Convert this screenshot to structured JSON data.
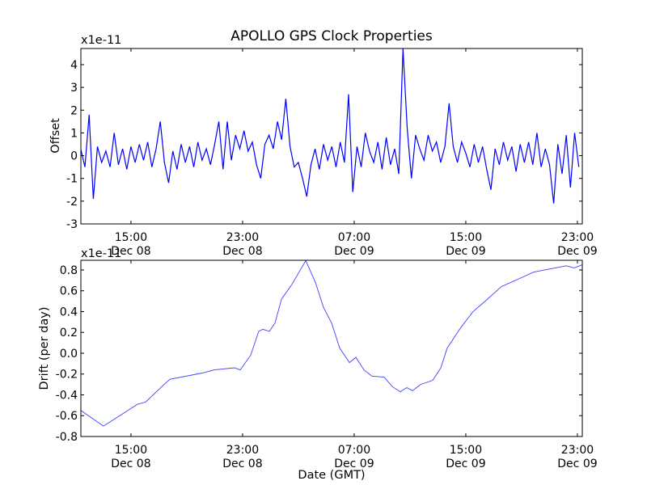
{
  "chart_data": [
    {
      "type": "line",
      "title": "APOLLO GPS Clock Properties",
      "ylabel": "Offset",
      "xlabel": "",
      "y_multiplier_label": "x1e-11",
      "x_unit": "hours since Dec 08 00:00 GMT",
      "xlim": [
        11.41,
        47.35
      ],
      "ylim": [
        -3,
        4.71
      ],
      "yticks": [
        -3,
        -2,
        -1,
        0,
        1,
        2,
        3,
        4
      ],
      "xticks": [
        {
          "x": 15,
          "time": "15:00",
          "date": "Dec 08"
        },
        {
          "x": 23,
          "time": "23:00",
          "date": "Dec 08"
        },
        {
          "x": 31,
          "time": "07:00",
          "date": "Dec 09"
        },
        {
          "x": 39,
          "time": "15:00",
          "date": "Dec 09"
        },
        {
          "x": 47,
          "time": "23:00",
          "date": "Dec 09"
        }
      ],
      "color": "#0000ff",
      "series": {
        "start_hour": 11.4,
        "step_hours": 0.3,
        "values": [
          0.3,
          -0.5,
          1.8,
          -1.9,
          0.4,
          -0.3,
          0.2,
          -0.5,
          1.0,
          -0.4,
          0.3,
          -0.6,
          0.4,
          -0.3,
          0.5,
          -0.2,
          0.6,
          -0.5,
          0.3,
          1.5,
          -0.3,
          -1.2,
          0.2,
          -0.6,
          0.5,
          -0.3,
          0.4,
          -0.5,
          0.6,
          -0.2,
          0.3,
          -0.4,
          0.5,
          1.5,
          -0.6,
          1.5,
          -0.2,
          0.9,
          0.3,
          1.1,
          0.2,
          0.6,
          -0.4,
          -1.0,
          0.5,
          0.9,
          0.3,
          1.5,
          0.7,
          2.5,
          0.4,
          -0.5,
          -0.3,
          -1.0,
          -1.8,
          -0.4,
          0.3,
          -0.6,
          0.5,
          -0.2,
          0.4,
          -0.5,
          0.6,
          -0.3,
          2.7,
          -1.6,
          0.4,
          -0.5,
          1.0,
          0.2,
          -0.3,
          0.6,
          -0.6,
          0.8,
          -0.4,
          0.3,
          -0.8,
          4.7,
          1.2,
          -1.0,
          0.9,
          0.3,
          -0.2,
          0.9,
          0.2,
          0.6,
          -0.3,
          0.4,
          2.3,
          0.4,
          -0.3,
          0.6,
          0.1,
          -0.5,
          0.5,
          -0.3,
          0.4,
          -0.6,
          -1.5,
          0.3,
          -0.4,
          0.6,
          -0.2,
          0.4,
          -0.7,
          0.5,
          -0.3,
          0.6,
          -0.4,
          1.0,
          -0.5,
          0.3,
          -0.4,
          -2.1,
          0.5,
          -0.8,
          0.9,
          -1.4,
          1.0,
          -0.5
        ]
      }
    },
    {
      "type": "line",
      "title": "",
      "ylabel": "Drift (per day)",
      "xlabel": "Date (GMT)",
      "y_multiplier_label": "x1e-11",
      "x_unit": "hours since Dec 08 00:00 GMT",
      "xlim": [
        11.41,
        47.35
      ],
      "ylim": [
        -0.8,
        0.893
      ],
      "yticks": [
        -0.8,
        -0.6,
        -0.4,
        -0.2,
        0.0,
        0.2,
        0.4,
        0.6,
        0.8
      ],
      "xticks": [
        {
          "x": 15,
          "time": "15:00",
          "date": "Dec 08"
        },
        {
          "x": 23,
          "time": "23:00",
          "date": "Dec 08"
        },
        {
          "x": 31,
          "time": "07:00",
          "date": "Dec 09"
        },
        {
          "x": 39,
          "time": "15:00",
          "date": "Dec 09"
        },
        {
          "x": 47,
          "time": "23:00",
          "date": "Dec 09"
        }
      ],
      "color": "#4040ff",
      "series": {
        "x": [
          11.41,
          13.03,
          14.31,
          15.47,
          16.05,
          17.21,
          17.79,
          20.11,
          20.98,
          22.42,
          22.83,
          23.58,
          24.16,
          24.45,
          24.92,
          25.32,
          25.79,
          26.48,
          27.53,
          28.22,
          28.8,
          29.38,
          29.96,
          30.66,
          31.12,
          31.7,
          32.28,
          33.15,
          33.73,
          34.31,
          34.77,
          35.18,
          35.76,
          36.63,
          37.21,
          37.67,
          38.66,
          39.52,
          40.39,
          41.55,
          42.71,
          43.87,
          45.03,
          46.19,
          46.77,
          47.35
        ],
        "y": [
          -0.55,
          -0.7,
          -0.59,
          -0.49,
          -0.47,
          -0.32,
          -0.25,
          -0.19,
          -0.16,
          -0.14,
          -0.16,
          -0.02,
          0.21,
          0.23,
          0.21,
          0.29,
          0.52,
          0.65,
          0.89,
          0.68,
          0.44,
          0.29,
          0.05,
          -0.09,
          -0.04,
          -0.16,
          -0.22,
          -0.23,
          -0.32,
          -0.37,
          -0.33,
          -0.36,
          -0.3,
          -0.26,
          -0.14,
          0.05,
          0.25,
          0.4,
          0.5,
          0.64,
          0.71,
          0.78,
          0.81,
          0.84,
          0.82,
          0.85
        ]
      }
    }
  ]
}
